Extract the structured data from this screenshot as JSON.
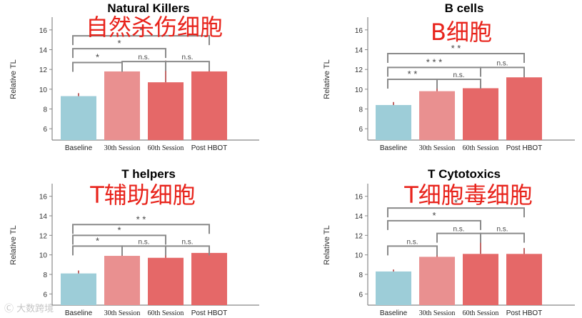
{
  "colors": {
    "baseline": "#9dcdd8",
    "s30": "#e99090",
    "s60": "#e56868",
    "post": "#e56868",
    "errorbar": "#b04040",
    "axis": "#888888",
    "bracket": "#8a8a8a",
    "chinese": "#e8231b"
  },
  "watermark": "Ⓒ 大数跨境",
  "chart_data": [
    {
      "type": "bar",
      "title": "Natural Killers",
      "subtitle": "自然杀伤细胞",
      "ylabel": "Relative TL",
      "ylim": [
        5,
        17
      ],
      "yticks": [
        "6",
        "8",
        "10",
        "12",
        "14",
        "16"
      ],
      "categories": [
        "Baseline",
        "30th Session",
        "60th Session",
        "Post HBOT"
      ],
      "values": [
        9.3,
        11.8,
        10.7,
        11.8
      ],
      "errors": [
        0.3,
        0.9,
        2.2,
        0.8
      ],
      "brackets": [
        {
          "from": 0,
          "to": 1,
          "level": 12.7,
          "label": "*"
        },
        {
          "from": 1,
          "to": 2,
          "level": 12.8,
          "label": "n.s."
        },
        {
          "from": 2,
          "to": 3,
          "level": 12.8,
          "label": "n.s."
        },
        {
          "from": 0,
          "to": 2,
          "level": 14.1,
          "label": "*"
        },
        {
          "from": 0,
          "to": 3,
          "level": 15.4,
          "label": "*"
        }
      ]
    },
    {
      "type": "bar",
      "title": "B cells",
      "subtitle": "B细胞",
      "ylabel": "Relative TL",
      "ylim": [
        5,
        17
      ],
      "yticks": [
        "6",
        "8",
        "10",
        "12",
        "14",
        "16"
      ],
      "categories": [
        "Baseline",
        "30th Session",
        "60th Session",
        "Post HBOT"
      ],
      "values": [
        8.4,
        9.8,
        10.1,
        11.2
      ],
      "errors": [
        0.3,
        0.7,
        0.6,
        0.5
      ],
      "brackets": [
        {
          "from": 0,
          "to": 1,
          "level": 11.0,
          "label": "* *"
        },
        {
          "from": 1,
          "to": 2,
          "level": 11.0,
          "label": "n.s."
        },
        {
          "from": 0,
          "to": 2,
          "level": 12.2,
          "label": "* * *"
        },
        {
          "from": 2,
          "to": 3,
          "level": 12.2,
          "label": "n.s."
        },
        {
          "from": 0,
          "to": 3,
          "level": 13.6,
          "label": "* *"
        }
      ]
    },
    {
      "type": "bar",
      "title": "T helpers",
      "subtitle": "T辅助细胞",
      "ylabel": "Relative TL",
      "ylim": [
        5,
        17
      ],
      "yticks": [
        "6",
        "8",
        "10",
        "12",
        "14",
        "16"
      ],
      "categories": [
        "Baseline",
        "30th Session",
        "60th Session",
        "Post HBOT"
      ],
      "values": [
        8.1,
        9.9,
        9.7,
        10.2
      ],
      "errors": [
        0.3,
        0.6,
        0.4,
        0.5
      ],
      "brackets": [
        {
          "from": 0,
          "to": 1,
          "level": 10.9,
          "label": "*"
        },
        {
          "from": 1,
          "to": 2,
          "level": 10.9,
          "label": "n.s."
        },
        {
          "from": 2,
          "to": 3,
          "level": 10.9,
          "label": "n.s."
        },
        {
          "from": 0,
          "to": 2,
          "level": 12.0,
          "label": "*"
        },
        {
          "from": 0,
          "to": 3,
          "level": 13.1,
          "label": "* *"
        }
      ]
    },
    {
      "type": "bar",
      "title": "T Cytotoxics",
      "subtitle": "T细胞毒细胞",
      "ylabel": "Relative TL",
      "ylim": [
        5,
        17
      ],
      "yticks": [
        "6",
        "8",
        "10",
        "12",
        "14",
        "16"
      ],
      "categories": [
        "Baseline",
        "30th Session",
        "60th Session",
        "Post HBOT"
      ],
      "values": [
        8.3,
        9.8,
        10.1,
        10.1
      ],
      "errors": [
        0.2,
        0.8,
        2.0,
        0.6
      ],
      "brackets": [
        {
          "from": 0,
          "to": 1,
          "level": 10.9,
          "label": "n.s."
        },
        {
          "from": 1,
          "to": 2,
          "level": 12.2,
          "label": "n.s."
        },
        {
          "from": 2,
          "to": 3,
          "level": 12.2,
          "label": "n.s."
        },
        {
          "from": 0,
          "to": 2,
          "level": 13.5,
          "label": "*"
        },
        {
          "from": 0,
          "to": 3,
          "level": 14.8,
          "label": "*"
        }
      ]
    }
  ]
}
